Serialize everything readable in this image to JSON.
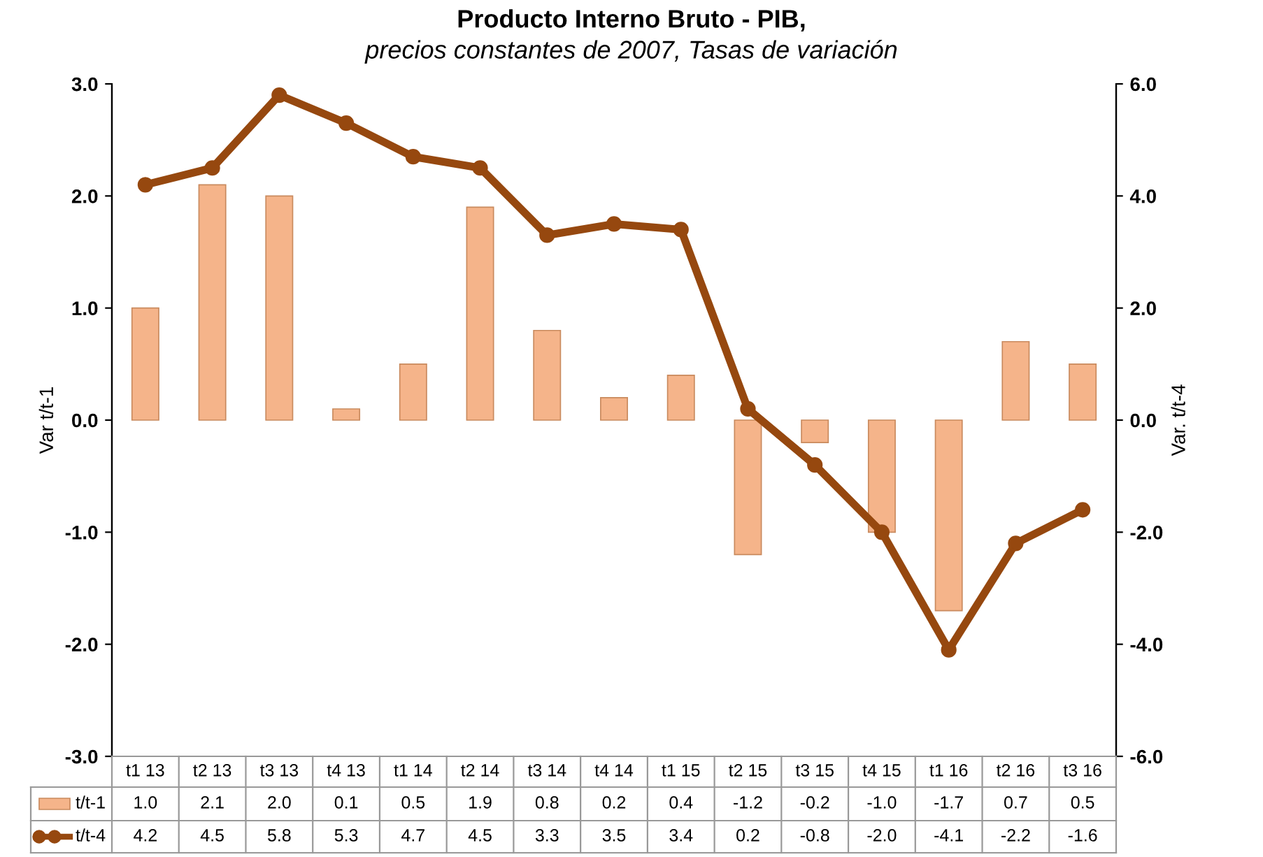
{
  "chart_data": {
    "type": "bar",
    "title": "Producto Interno Bruto - PIB,",
    "subtitle": "precios constantes de 2007, Tasas de variación",
    "ylabel": "Var t/t-1",
    "y2label": "Var. t/t-4",
    "categories": [
      "t1 13",
      "t2 13",
      "t3 13",
      "t4 13",
      "t1 14",
      "t2 14",
      "t3 14",
      "t4 14",
      "t1 15",
      "t2 15",
      "t3 15",
      "t4 15",
      "t1 16",
      "t2 16",
      "t3 16"
    ],
    "series": [
      {
        "name": "t/t-1",
        "color": "#f5b48a",
        "values": [
          1.0,
          2.1,
          2.0,
          0.1,
          0.5,
          1.9,
          0.8,
          0.2,
          0.4,
          -1.2,
          -0.2,
          -1.0,
          -1.7,
          0.7,
          0.5
        ],
        "value_labels": [
          "1.0",
          "2.1",
          "2.0",
          "0.1",
          "0.5",
          "1.9",
          "0.8",
          "0.2",
          "0.4",
          "-1.2",
          "-0.2",
          "-1.0",
          "-1.7",
          "0.7",
          "0.5"
        ]
      },
      {
        "name": "t/t-4",
        "type": "line",
        "axis": "y2",
        "color": "#96480f",
        "marker": "circle",
        "values": [
          4.2,
          4.5,
          5.8,
          5.3,
          4.7,
          4.5,
          3.3,
          3.5,
          3.4,
          0.2,
          -0.8,
          -2.0,
          -4.1,
          -2.2,
          -1.6
        ],
        "value_labels": [
          "4.2",
          "4.5",
          "5.8",
          "5.3",
          "4.7",
          "4.5",
          "3.3",
          "3.5",
          "3.4",
          "0.2",
          "-0.8",
          "-2.0",
          "-4.1",
          "-2.2",
          "-1.6"
        ]
      }
    ],
    "ylim": [
      -3.0,
      3.0
    ],
    "yticks": [
      {
        "value": -3,
        "label": "-3.0"
      },
      {
        "value": -2,
        "label": "-2.0"
      },
      {
        "value": -1,
        "label": "-1.0"
      },
      {
        "value": 0,
        "label": "0.0"
      },
      {
        "value": 1,
        "label": "1.0"
      },
      {
        "value": 2,
        "label": "2.0"
      },
      {
        "value": 3,
        "label": "3.0"
      }
    ],
    "y2lim": [
      -6.0,
      6.0
    ],
    "y2ticks": [
      {
        "value": -6,
        "label": "-6.0"
      },
      {
        "value": -4,
        "label": "-4.0"
      },
      {
        "value": -2,
        "label": "-2.0"
      },
      {
        "value": 0,
        "label": "0.0"
      },
      {
        "value": 2,
        "label": "2.0"
      },
      {
        "value": 4,
        "label": "4.0"
      },
      {
        "value": 6,
        "label": "6.0"
      }
    ],
    "legend": "bottom"
  }
}
